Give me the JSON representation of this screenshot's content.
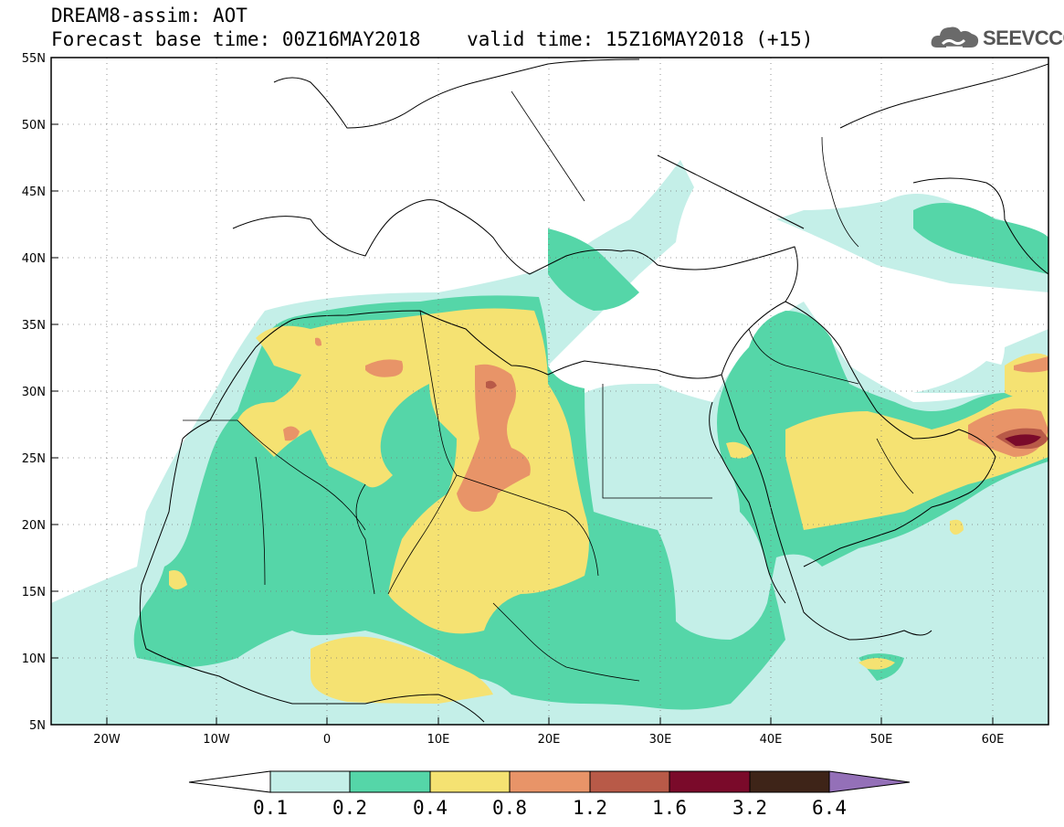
{
  "title": {
    "line1": "DREAM8-assim: AOT",
    "line2": "Forecast base time: 00Z16MAY2018    valid time: 15Z16MAY2018 (+15)"
  },
  "logo": {
    "text": "SEEVCCC",
    "icon": "cloud-icon"
  },
  "axes": {
    "lon_range": [
      -25,
      65
    ],
    "lat_range": [
      5,
      55
    ],
    "lat_ticks": [
      {
        "v": 55,
        "label": "55N"
      },
      {
        "v": 50,
        "label": "50N"
      },
      {
        "v": 45,
        "label": "45N"
      },
      {
        "v": 40,
        "label": "40N"
      },
      {
        "v": 35,
        "label": "35N"
      },
      {
        "v": 30,
        "label": "30N"
      },
      {
        "v": 25,
        "label": "25N"
      },
      {
        "v": 20,
        "label": "20N"
      },
      {
        "v": 15,
        "label": "15N"
      },
      {
        "v": 10,
        "label": "10N"
      },
      {
        "v": 5,
        "label": "5N"
      }
    ],
    "lon_ticks": [
      {
        "v": -20,
        "label": "20W"
      },
      {
        "v": -10,
        "label": "10W"
      },
      {
        "v": 0,
        "label": "0"
      },
      {
        "v": 10,
        "label": "10E"
      },
      {
        "v": 20,
        "label": "20E"
      },
      {
        "v": 30,
        "label": "30E"
      },
      {
        "v": 40,
        "label": "40E"
      },
      {
        "v": 50,
        "label": "50E"
      },
      {
        "v": 60,
        "label": "60E"
      }
    ],
    "grid": "dotted"
  },
  "colorbar": {
    "labels": [
      "0.1",
      "0.2",
      "0.4",
      "0.8",
      "1.2",
      "1.6",
      "3.2",
      "6.4"
    ],
    "colors": [
      "#ffffff",
      "#c4efe8",
      "#55d6a8",
      "#f5e272",
      "#e89468",
      "#b85a48",
      "#7a0a2a",
      "#3e2418",
      "#9470b8"
    ]
  }
}
